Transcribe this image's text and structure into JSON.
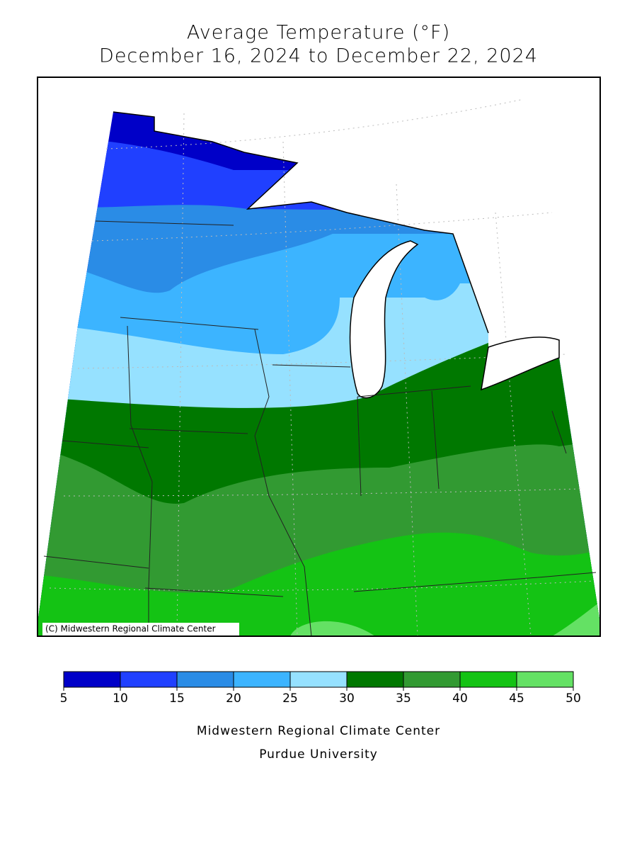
{
  "header": {
    "title": "Average Temperature (°F)",
    "subtitle": "December 16, 2024 to December 22, 2024"
  },
  "map": {
    "credit": "(C) Midwestern Regional Climate Center"
  },
  "legend": {
    "ticks": [
      5,
      10,
      15,
      20,
      25,
      30,
      35,
      40,
      45,
      50
    ],
    "colors": [
      "#0000c8",
      "#2040ff",
      "#2a8ce6",
      "#3cb4ff",
      "#96e1ff",
      "#007800",
      "#329a32",
      "#14c314",
      "#64e164"
    ]
  },
  "footer": {
    "line1": "Midwestern Regional Climate Center",
    "line2": "Purdue University"
  }
}
